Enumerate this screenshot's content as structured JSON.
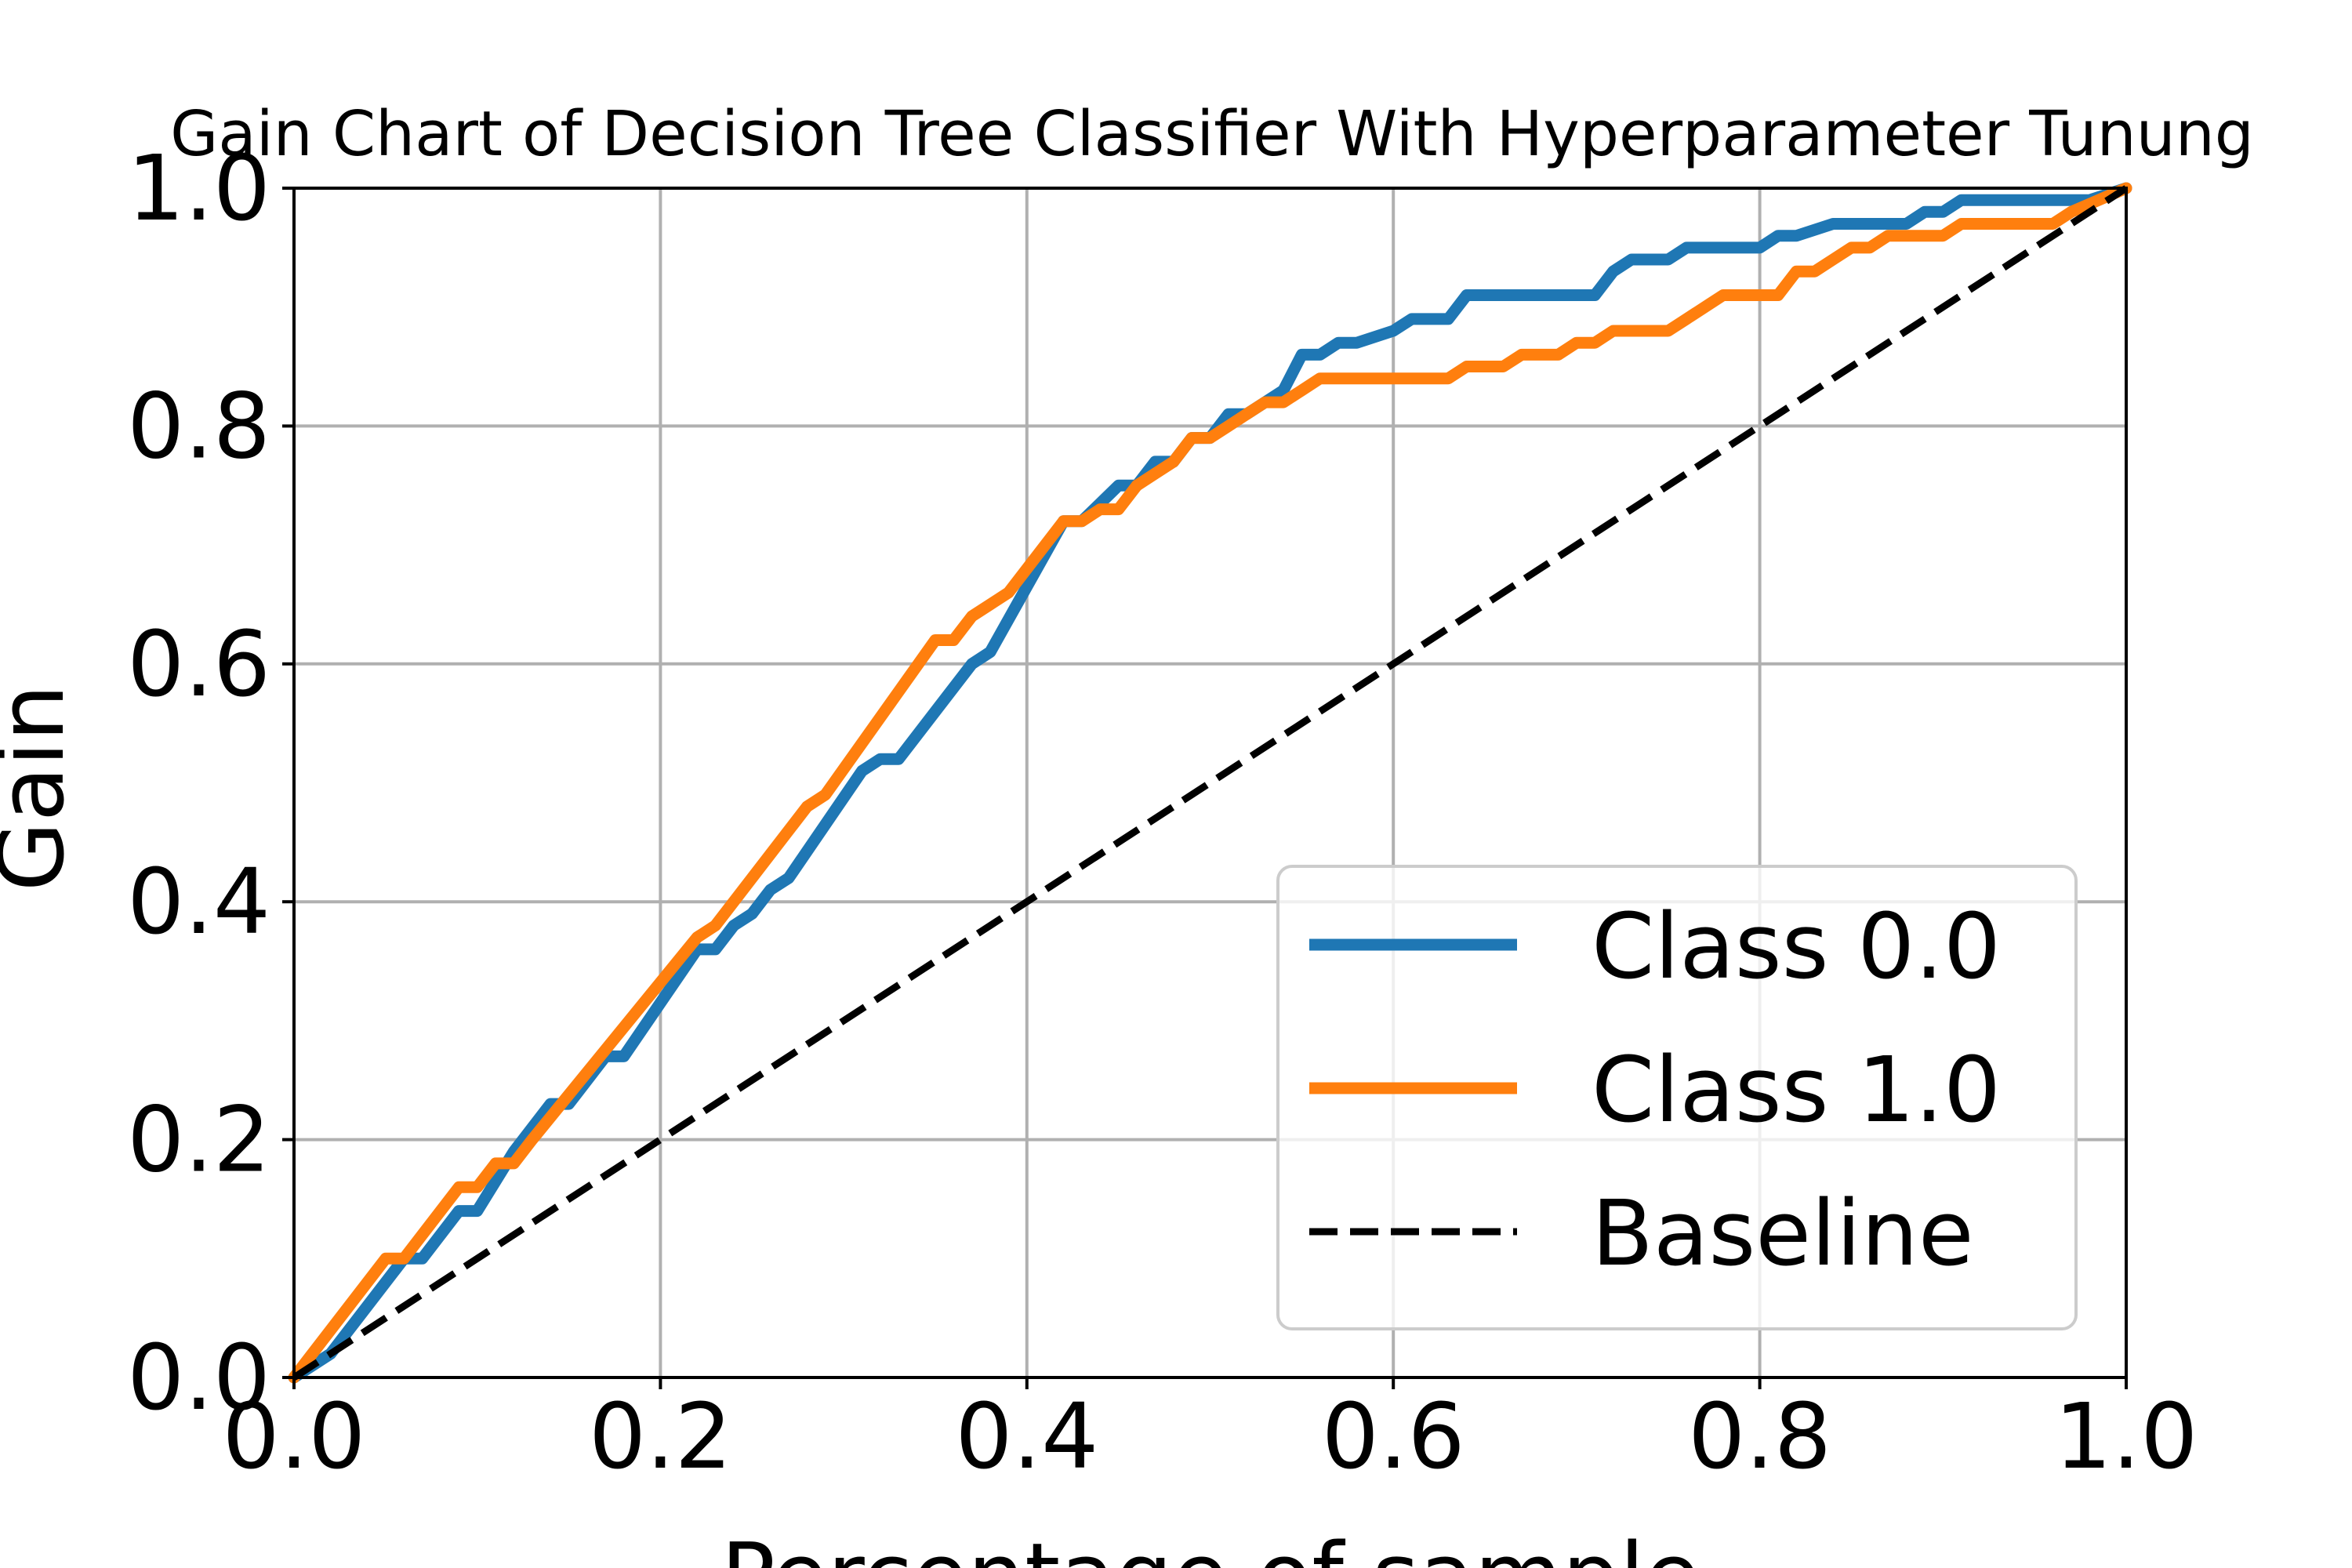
{
  "chart_data": {
    "type": "line",
    "title": "Gain Chart of Decision Tree Classifier With Hyperparameter Tunung",
    "xlabel": "Percentage of sample",
    "ylabel": "Gain",
    "xlim": [
      0,
      1
    ],
    "ylim": [
      0,
      1
    ],
    "grid": true,
    "legend_position": "lower-right",
    "xticks": [
      "0.0",
      "0.2",
      "0.4",
      "0.6",
      "0.8",
      "1.0"
    ],
    "yticks": [
      "0.0",
      "0.2",
      "0.4",
      "0.6",
      "0.8",
      "1.0"
    ],
    "series": [
      {
        "name": "Class 0.0",
        "color": "#1f77b4",
        "style": "solid",
        "x": [
          0,
          0.02,
          0.06,
          0.07,
          0.09,
          0.1,
          0.12,
          0.14,
          0.15,
          0.17,
          0.18,
          0.22,
          0.23,
          0.24,
          0.25,
          0.26,
          0.27,
          0.31,
          0.32,
          0.33,
          0.37,
          0.38,
          0.42,
          0.43,
          0.45,
          0.46,
          0.47,
          0.48,
          0.49,
          0.5,
          0.51,
          0.52,
          0.54,
          0.55,
          0.56,
          0.57,
          0.58,
          0.6,
          0.61,
          0.63,
          0.64,
          0.71,
          0.72,
          0.73,
          0.75,
          0.76,
          0.8,
          0.81,
          0.82,
          0.84,
          0.88,
          0.89,
          0.9,
          0.91,
          0.97,
          0.98,
          1.0
        ],
        "y": [
          0,
          0.02,
          0.1,
          0.1,
          0.14,
          0.14,
          0.19,
          0.23,
          0.23,
          0.27,
          0.27,
          0.36,
          0.36,
          0.38,
          0.39,
          0.41,
          0.42,
          0.51,
          0.52,
          0.52,
          0.6,
          0.61,
          0.72,
          0.72,
          0.75,
          0.75,
          0.77,
          0.77,
          0.79,
          0.79,
          0.81,
          0.81,
          0.83,
          0.86,
          0.86,
          0.87,
          0.87,
          0.88,
          0.89,
          0.89,
          0.91,
          0.91,
          0.93,
          0.94,
          0.94,
          0.95,
          0.95,
          0.96,
          0.96,
          0.97,
          0.97,
          0.98,
          0.98,
          0.99,
          0.99,
          0.99,
          1.0
        ]
      },
      {
        "name": "Class 1.0",
        "color": "#ff7f0e",
        "style": "solid",
        "x": [
          0,
          0.05,
          0.06,
          0.09,
          0.1,
          0.11,
          0.12,
          0.13,
          0.22,
          0.23,
          0.28,
          0.29,
          0.35,
          0.36,
          0.37,
          0.38,
          0.39,
          0.4,
          0.42,
          0.43,
          0.44,
          0.45,
          0.46,
          0.47,
          0.48,
          0.49,
          0.5,
          0.51,
          0.52,
          0.53,
          0.54,
          0.55,
          0.56,
          0.63,
          0.64,
          0.66,
          0.67,
          0.69,
          0.7,
          0.71,
          0.72,
          0.75,
          0.76,
          0.78,
          0.81,
          0.82,
          0.83,
          0.84,
          0.85,
          0.86,
          0.87,
          0.88,
          0.89,
          0.9,
          0.91,
          0.96,
          0.97,
          1.0
        ],
        "y": [
          0,
          0.1,
          0.1,
          0.16,
          0.16,
          0.18,
          0.18,
          0.2,
          0.37,
          0.38,
          0.48,
          0.49,
          0.62,
          0.62,
          0.64,
          0.65,
          0.66,
          0.68,
          0.72,
          0.72,
          0.73,
          0.73,
          0.75,
          0.76,
          0.77,
          0.79,
          0.79,
          0.8,
          0.81,
          0.82,
          0.82,
          0.83,
          0.84,
          0.84,
          0.85,
          0.85,
          0.86,
          0.86,
          0.87,
          0.87,
          0.88,
          0.88,
          0.89,
          0.91,
          0.91,
          0.93,
          0.93,
          0.94,
          0.95,
          0.95,
          0.96,
          0.96,
          0.96,
          0.96,
          0.97,
          0.97,
          0.98,
          1.0
        ]
      },
      {
        "name": "Baseline",
        "color": "#000000",
        "style": "dashed",
        "x": [
          0,
          1
        ],
        "y": [
          0,
          1
        ]
      }
    ]
  }
}
